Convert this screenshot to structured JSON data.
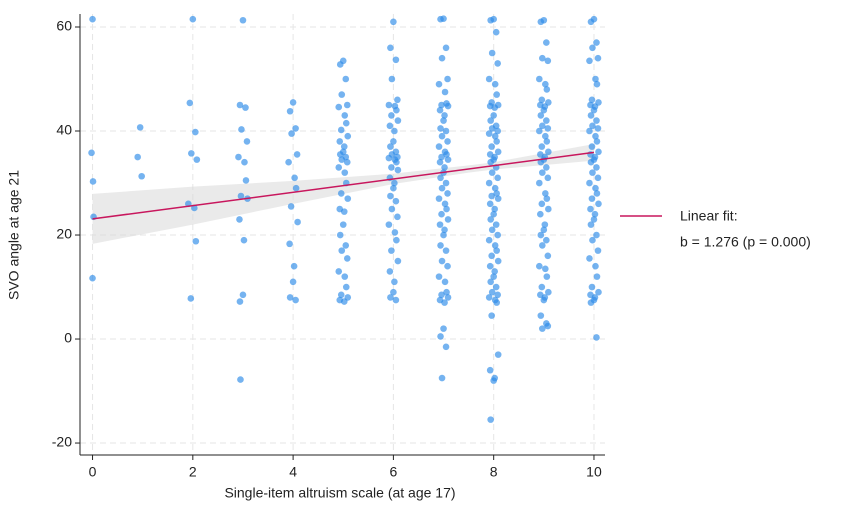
{
  "chart_data": {
    "type": "scatter",
    "xlabel": "Single-item altruism scale (at age 17)",
    "ylabel": "SVO angle at age 21",
    "xlim": [
      -0.25,
      10.22
    ],
    "ylim": [
      -22.3,
      62.5
    ],
    "xticks": [
      0,
      2,
      4,
      6,
      8,
      10
    ],
    "yticks": [
      -20,
      0,
      20,
      40,
      60
    ],
    "grid": true,
    "legend": "right",
    "series": [
      {
        "color": "#2b8ae8",
        "x": [
          0,
          -0.02,
          0.01,
          0.02,
          0,
          0.95,
          0.9,
          0.98,
          2,
          1.94,
          2.05,
          1.97,
          2.08,
          1.91,
          2.03,
          2.06,
          1.96,
          3,
          2.94,
          3.05,
          2.97,
          3.08,
          2.91,
          3.03,
          3.06,
          2.96,
          3.09,
          2.93,
          3.02,
          3,
          2.94,
          2.95,
          4,
          3.94,
          4.05,
          3.97,
          4.08,
          3.91,
          4.03,
          4.06,
          3.96,
          4.09,
          3.93,
          4.02,
          4,
          3.94,
          4.05,
          5,
          4.94,
          5.05,
          4.97,
          5.08,
          4.91,
          5.03,
          5.06,
          4.96,
          5.09,
          4.93,
          5.02,
          5,
          4.94,
          5.05,
          4.97,
          5.08,
          4.91,
          5.03,
          5.06,
          4.96,
          5.09,
          4.93,
          5.02,
          5,
          4.94,
          5.05,
          4.97,
          5.08,
          4.91,
          5.03,
          5.06,
          4.96,
          5.09,
          4.93,
          5.02,
          6,
          5.94,
          6.05,
          5.97,
          6.08,
          5.91,
          6.03,
          6.06,
          5.96,
          6.09,
          5.93,
          6.02,
          6,
          5.94,
          6.05,
          5.97,
          6.08,
          5.91,
          6.03,
          6.06,
          5.96,
          6.09,
          5.93,
          6.02,
          6,
          5.94,
          6.05,
          5.97,
          6.08,
          5.91,
          6.03,
          6.06,
          5.96,
          6.09,
          5.93,
          6.02,
          6,
          5.94,
          6.05,
          7,
          6.94,
          7.05,
          6.97,
          7.08,
          6.91,
          7.03,
          7.06,
          6.96,
          7.09,
          6.93,
          7.02,
          7,
          6.94,
          7.05,
          6.97,
          7.08,
          6.91,
          7.03,
          7.06,
          6.96,
          7.09,
          6.93,
          7.02,
          7,
          6.94,
          7.05,
          6.97,
          7.08,
          6.91,
          7.03,
          7.06,
          6.96,
          7.09,
          6.93,
          7.02,
          7,
          6.94,
          7.05,
          6.97,
          7.08,
          6.91,
          7.03,
          7.06,
          6.96,
          7.09,
          6.93,
          7.02,
          7,
          6.94,
          7.05,
          6.97,
          8,
          7.94,
          8.05,
          7.97,
          8.08,
          7.91,
          8.03,
          8.06,
          7.96,
          8.09,
          7.93,
          8.02,
          8,
          7.94,
          8.05,
          7.97,
          8.08,
          7.91,
          8.03,
          8.06,
          7.96,
          8.09,
          7.93,
          8.02,
          8,
          7.94,
          8.05,
          7.97,
          8.08,
          7.91,
          8.03,
          8.06,
          7.96,
          8.09,
          7.93,
          8.02,
          8,
          7.94,
          8.05,
          7.97,
          8.08,
          7.91,
          8.03,
          8.06,
          7.96,
          8.09,
          7.93,
          8.02,
          8,
          7.94,
          8.05,
          7.97,
          8.08,
          7.91,
          8.03,
          8.06,
          7.96,
          8.09,
          7.93,
          8.02,
          8,
          7.94,
          9,
          8.94,
          9.05,
          8.97,
          9.08,
          8.91,
          9.03,
          9.06,
          8.96,
          9.09,
          8.93,
          9.02,
          9,
          8.94,
          9.05,
          8.97,
          9.08,
          8.91,
          9.03,
          9.06,
          8.96,
          9.09,
          8.93,
          9.02,
          9,
          8.94,
          9.05,
          8.97,
          9.08,
          8.91,
          9.03,
          9.06,
          8.96,
          9.09,
          8.93,
          9.02,
          9,
          8.94,
          9.05,
          8.97,
          9.08,
          8.91,
          9.03,
          9.06,
          8.96,
          9.09,
          8.93,
          9.02,
          9,
          8.94,
          9.05,
          8.97,
          9.08,
          10,
          9.94,
          10.05,
          9.97,
          10.08,
          9.91,
          10.03,
          10.06,
          9.96,
          10.09,
          9.93,
          10.02,
          10,
          9.94,
          10.05,
          9.97,
          10.08,
          9.91,
          10.03,
          10.06,
          9.96,
          10.09,
          9.93,
          10.02,
          10,
          9.94,
          10.05,
          9.97,
          10.08,
          9.91,
          10.03,
          10.06,
          9.96,
          10.09,
          9.93,
          10.02,
          10,
          9.94,
          10.05,
          9.97,
          10.08,
          9.91,
          10.03,
          10.06,
          9.96,
          10.09,
          9.93,
          10.02,
          10,
          9.94,
          10.05
        ],
        "values": [
          61.5,
          35.8,
          30.3,
          23.5,
          11.7,
          40.7,
          35,
          31.3,
          61.5,
          45.4,
          39.8,
          35.7,
          34.5,
          26,
          25.2,
          18.8,
          7.8,
          61.3,
          45,
          44.5,
          40.3,
          38,
          35,
          34,
          30.5,
          27.5,
          27,
          23,
          19,
          8.5,
          7.2,
          -7.8,
          45.5,
          43.8,
          40.5,
          39.5,
          35.5,
          34,
          31,
          29,
          25.5,
          22.5,
          18.3,
          14,
          11,
          8,
          7.5,
          53.5,
          52.8,
          50,
          47,
          45,
          44.6,
          43,
          41.5,
          40.2,
          39,
          38,
          37,
          36,
          35.5,
          35,
          34.5,
          34,
          33,
          32,
          30,
          28,
          27,
          25,
          24.5,
          22,
          20,
          18,
          17,
          15.5,
          13,
          12,
          10,
          8.5,
          8,
          7.5,
          7.2,
          61,
          56,
          53.7,
          50,
          46,
          45,
          44.8,
          44,
          43,
          42,
          41,
          40,
          38,
          37,
          36,
          35.5,
          35,
          34.8,
          34.5,
          34,
          33,
          32.5,
          31,
          30,
          29,
          27.5,
          26.5,
          25,
          23.5,
          22,
          20.5,
          19,
          17,
          15,
          13,
          11,
          9,
          8,
          7.5,
          61.6,
          61.5,
          56,
          54,
          50,
          49,
          47.5,
          45.3,
          45,
          44.8,
          44,
          43,
          42,
          40.5,
          40,
          39,
          38,
          37,
          36,
          35.5,
          35,
          34.5,
          34,
          33,
          32,
          31,
          30,
          29,
          28,
          27,
          26,
          25,
          24,
          23,
          22,
          21,
          20,
          18,
          17,
          15,
          14,
          12,
          11,
          9,
          8.5,
          8,
          7.5,
          7,
          2,
          0.5,
          -1.5,
          -7.5,
          61.5,
          61.3,
          59,
          55,
          53,
          50,
          49,
          47,
          45.5,
          45,
          44.8,
          44.5,
          43,
          42,
          41,
          40.5,
          40,
          39.5,
          39,
          38,
          37,
          36,
          35.5,
          35,
          34.5,
          34,
          33,
          32,
          31,
          30,
          29,
          28,
          27.5,
          27,
          26,
          25,
          24,
          23,
          22,
          21,
          20,
          19,
          18,
          17,
          16,
          15,
          14,
          13,
          12,
          11,
          10,
          9,
          8.5,
          8,
          7.5,
          7,
          4.5,
          -3,
          -6,
          -7.5,
          -8,
          -15.5,
          61.3,
          61,
          57,
          54,
          53.5,
          50,
          49,
          48,
          46,
          45.5,
          45,
          44.7,
          44,
          43,
          42,
          41,
          40.5,
          40,
          39,
          38,
          37,
          36,
          35.5,
          35,
          34.5,
          34,
          33,
          32,
          31,
          30,
          28,
          27,
          26,
          25,
          24,
          22,
          21,
          20,
          19,
          18,
          16,
          14,
          13.5,
          12,
          10,
          9,
          8.5,
          8,
          7.5,
          4.5,
          3,
          2,
          2.5,
          61.5,
          61,
          57,
          56,
          54,
          53.5,
          50,
          49,
          46,
          45.5,
          45,
          44.7,
          44,
          43,
          42,
          41,
          40.5,
          40,
          39,
          38,
          37,
          36,
          35.5,
          35,
          34.5,
          34,
          33,
          32,
          31,
          30,
          29,
          28,
          27,
          26,
          25,
          24,
          23,
          22,
          20,
          19,
          17,
          15.5,
          14,
          12,
          10,
          9,
          8.5,
          8,
          7.5,
          7,
          0.3
        ]
      }
    ],
    "fit": {
      "name": "Linear fit:",
      "label": "b = 1.276 (p = 0.000)",
      "color": "#c8175d",
      "band_color": "#d9d9d9",
      "x": [
        0,
        10
      ],
      "values": [
        23.1,
        35.9
      ],
      "band_x": [
        0,
        2,
        4,
        6,
        7.5,
        8,
        10
      ],
      "ci_lower": [
        18.3,
        22.0,
        26.0,
        29.8,
        32.0,
        32.6,
        34.3
      ],
      "ci_upper": [
        27.9,
        29.3,
        30.4,
        31.8,
        33.4,
        34.0,
        37.5
      ]
    }
  }
}
